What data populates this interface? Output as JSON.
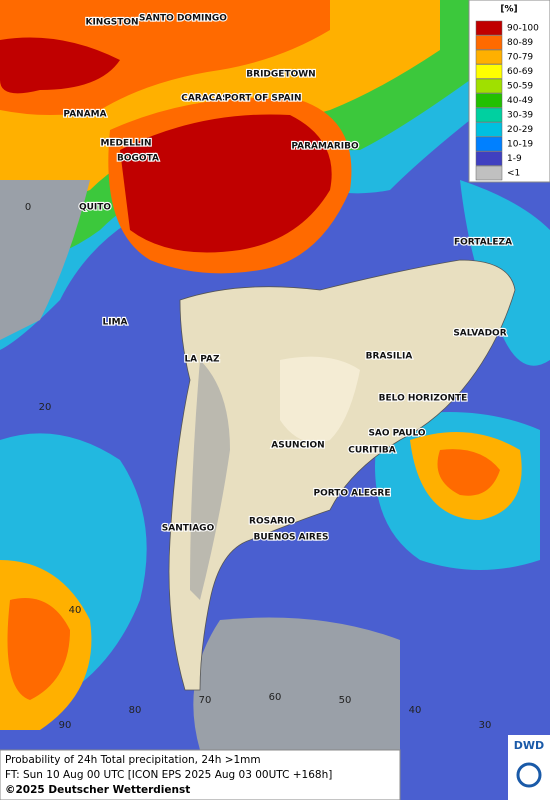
{
  "legend": {
    "title": "[%]",
    "items": [
      {
        "label": "90-100",
        "color": "#c00000"
      },
      {
        "label": "80-89",
        "color": "#ff6a00"
      },
      {
        "label": "70-79",
        "color": "#ffb000"
      },
      {
        "label": "60-69",
        "color": "#ffff00"
      },
      {
        "label": "50-59",
        "color": "#a0e000"
      },
      {
        "label": "40-49",
        "color": "#22c000"
      },
      {
        "label": "30-39",
        "color": "#00d0a0"
      },
      {
        "label": "20-29",
        "color": "#00c0e0"
      },
      {
        "label": "10-19",
        "color": "#0080ff"
      },
      {
        "label": "1-9",
        "color": "#4040c0"
      },
      {
        "label": "<1",
        "color": "#c0c0c0"
      }
    ]
  },
  "cities": [
    "KINGSTON",
    "SANTO DOMINGO",
    "BRIDGETOWN",
    "PANAMA",
    "CARACAS",
    "PORT OF SPAIN",
    "MEDELLIN",
    "BOGOTA",
    "PARAMARIBO",
    "QUITO",
    "FORTALEZA",
    "LIMA",
    "SALVADOR",
    "BRASILIA",
    "LA PAZ",
    "BELO HORIZONTE",
    "SAO PAULO",
    "ASUNCION",
    "CURITIBA",
    "PORTO ALEGRE",
    "ROSARIO",
    "SANTIAGO",
    "BUENOS AIRES"
  ],
  "grid_labels": [
    "0",
    "20",
    "40",
    "90",
    "80",
    "70",
    "60",
    "50",
    "40",
    "30"
  ],
  "footer": {
    "line1": "Probability of 24h Total precipitation, 24h >1mm",
    "line2": "FT: Sun 10 Aug 00 UTC [ICON EPS 2025 Aug 03 00UTC +168h]",
    "copyright": "©2025 Deutscher Wetterdienst"
  },
  "logo": "DWD"
}
